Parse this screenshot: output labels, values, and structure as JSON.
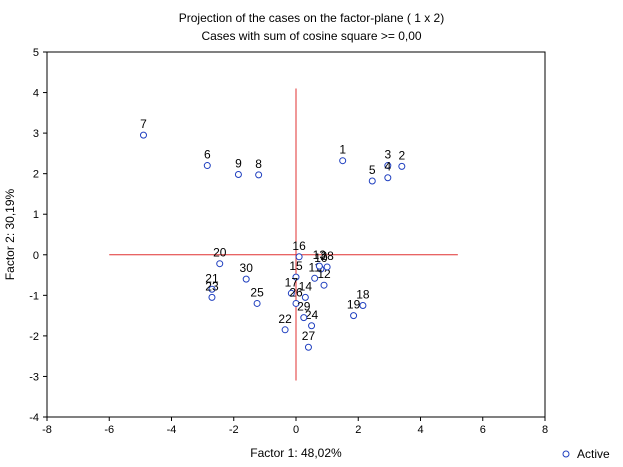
{
  "chart_data": {
    "type": "scatter",
    "title": "Projection of the cases on the factor-plane (  1 x   2)",
    "subtitle": "Cases with sum of cosine square >=  0,00",
    "xlabel": "Factor 1: 48,02%",
    "ylabel": "Factor 2: 30,19%",
    "xlim": [
      -8,
      8
    ],
    "ylim": [
      -4,
      5
    ],
    "xticks": [
      -8,
      -6,
      -4,
      -2,
      0,
      2,
      4,
      6,
      8
    ],
    "yticks": [
      -4,
      -3,
      -2,
      -1,
      0,
      1,
      2,
      3,
      4,
      5
    ],
    "legend": {
      "label": "Active",
      "placement": "bottom-right"
    },
    "grid": false,
    "point_color": "#1f3fbf",
    "axis_line_color": "#e03030",
    "reference_lines": {
      "horizontal": {
        "y": 0,
        "x_from": -6,
        "x_to": 5.2
      },
      "vertical": {
        "x": 0,
        "y_from": -3.1,
        "y_to": 4.1
      }
    },
    "points": [
      {
        "label": "1",
        "x": 1.5,
        "y": 2.32
      },
      {
        "label": "2",
        "x": 3.4,
        "y": 2.18
      },
      {
        "label": "3",
        "x": 2.95,
        "y": 2.2
      },
      {
        "label": "4",
        "x": 2.95,
        "y": 1.9
      },
      {
        "label": "5",
        "x": 2.45,
        "y": 1.82
      },
      {
        "label": "6",
        "x": -2.85,
        "y": 2.2
      },
      {
        "label": "7",
        "x": -4.9,
        "y": 2.95
      },
      {
        "label": "8",
        "x": -1.2,
        "y": 1.97
      },
      {
        "label": "9",
        "x": -1.85,
        "y": 1.98
      },
      {
        "label": "10",
        "x": 0.8,
        "y": -0.35
      },
      {
        "label": "11",
        "x": 0.6,
        "y": -0.58
      },
      {
        "label": "12",
        "x": 0.9,
        "y": -0.75
      },
      {
        "label": "13",
        "x": 0.75,
        "y": -0.28
      },
      {
        "label": "14",
        "x": 0.3,
        "y": -1.05
      },
      {
        "label": "15",
        "x": 0.0,
        "y": -0.55
      },
      {
        "label": "16",
        "x": 0.1,
        "y": -0.05
      },
      {
        "label": "17",
        "x": -0.15,
        "y": -0.95
      },
      {
        "label": "18",
        "x": 2.15,
        "y": -1.25
      },
      {
        "label": "19",
        "x": 1.85,
        "y": -1.5
      },
      {
        "label": "20",
        "x": -2.45,
        "y": -0.22
      },
      {
        "label": "21",
        "x": -2.7,
        "y": -0.85
      },
      {
        "label": "22",
        "x": -0.35,
        "y": -1.85
      },
      {
        "label": "23",
        "x": -2.7,
        "y": -1.05
      },
      {
        "label": "24",
        "x": 0.5,
        "y": -1.75
      },
      {
        "label": "25",
        "x": -1.25,
        "y": -1.2
      },
      {
        "label": "26",
        "x": 0.0,
        "y": -1.2
      },
      {
        "label": "27",
        "x": 0.4,
        "y": -2.28
      },
      {
        "label": "28",
        "x": 1.0,
        "y": -0.3
      },
      {
        "label": "29",
        "x": 0.25,
        "y": -1.55
      },
      {
        "label": "30",
        "x": -1.6,
        "y": -0.6
      }
    ]
  }
}
